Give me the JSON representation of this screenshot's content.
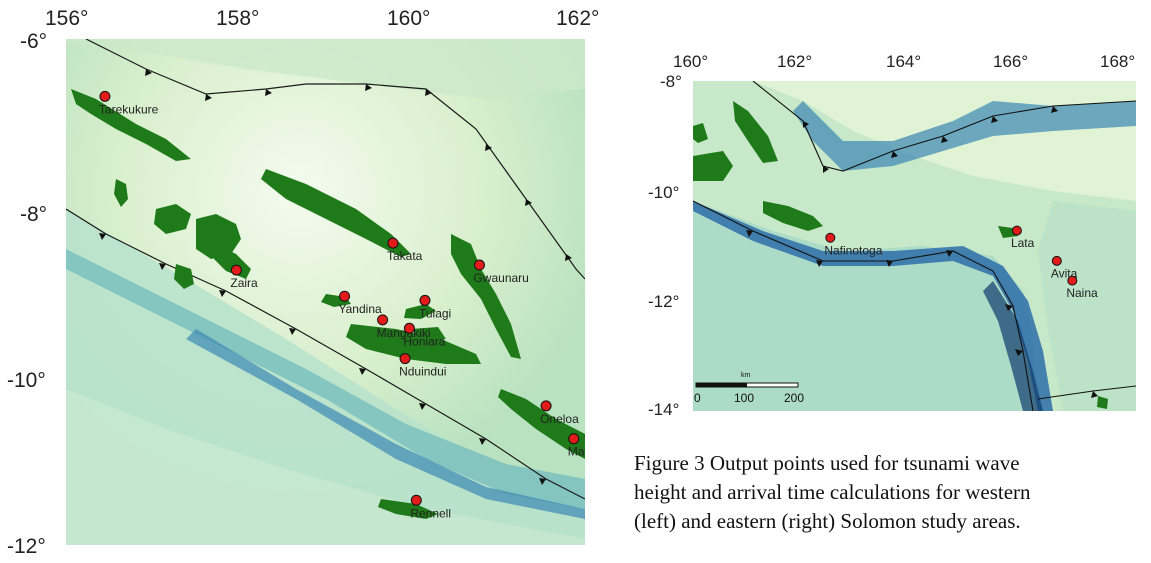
{
  "left_map": {
    "lon_ticks": [
      "156°",
      "158°",
      "160°",
      "162°"
    ],
    "lat_ticks": [
      "-6°",
      "-8°",
      "-10°",
      "-12°"
    ],
    "points": [
      {
        "name": "Tarekukure",
        "lon": 156.45,
        "lat": -6.68
      },
      {
        "name": "Zaira",
        "lon": 157.97,
        "lat": -8.74
      },
      {
        "name": "Takata",
        "lon": 159.78,
        "lat": -8.42
      },
      {
        "name": "Gwaunaru",
        "lon": 160.78,
        "lat": -8.68
      },
      {
        "name": "Yandina",
        "lon": 159.22,
        "lat": -9.05
      },
      {
        "name": "Tulagi",
        "lon": 160.15,
        "lat": -9.1
      },
      {
        "name": "Mangakiki",
        "lon": 159.66,
        "lat": -9.33
      },
      {
        "name": "Honiara",
        "lon": 159.97,
        "lat": -9.43
      },
      {
        "name": "Nduindui",
        "lon": 159.92,
        "lat": -9.79
      },
      {
        "name": "Oneloa",
        "lon": 161.55,
        "lat": -10.35
      },
      {
        "name": "Marung",
        "lon": 161.87,
        "lat": -10.74
      },
      {
        "name": "Rennell",
        "lon": 160.05,
        "lat": -11.47
      }
    ]
  },
  "right_map": {
    "lon_ticks": [
      "160°",
      "162°",
      "164°",
      "166°",
      "168°"
    ],
    "lat_ticks": [
      "-8°",
      "-10°",
      "-12°",
      "-14°"
    ],
    "scale_unit": "km",
    "scale_labels": [
      "0",
      "100",
      "200"
    ],
    "points": [
      {
        "name": "Nafinotoga",
        "lon": 162.48,
        "lat": -10.85
      },
      {
        "name": "Lata",
        "lon": 165.85,
        "lat": -10.72
      },
      {
        "name": "Avita",
        "lon": 166.57,
        "lat": -11.27
      },
      {
        "name": "Naina",
        "lon": 166.85,
        "lat": -11.63
      }
    ]
  },
  "caption": {
    "line1": "Figure 3 Output points used for tsunami wave",
    "line2": "height and arrival time calculations for western",
    "line3": "(left) and eastern (right) Solomon study areas."
  },
  "colors": {
    "land": "#1f7a1a",
    "point": "#e21b1b",
    "ocean_deep": "#2c6fa6",
    "ocean_shallow": "#e2f3d2"
  }
}
